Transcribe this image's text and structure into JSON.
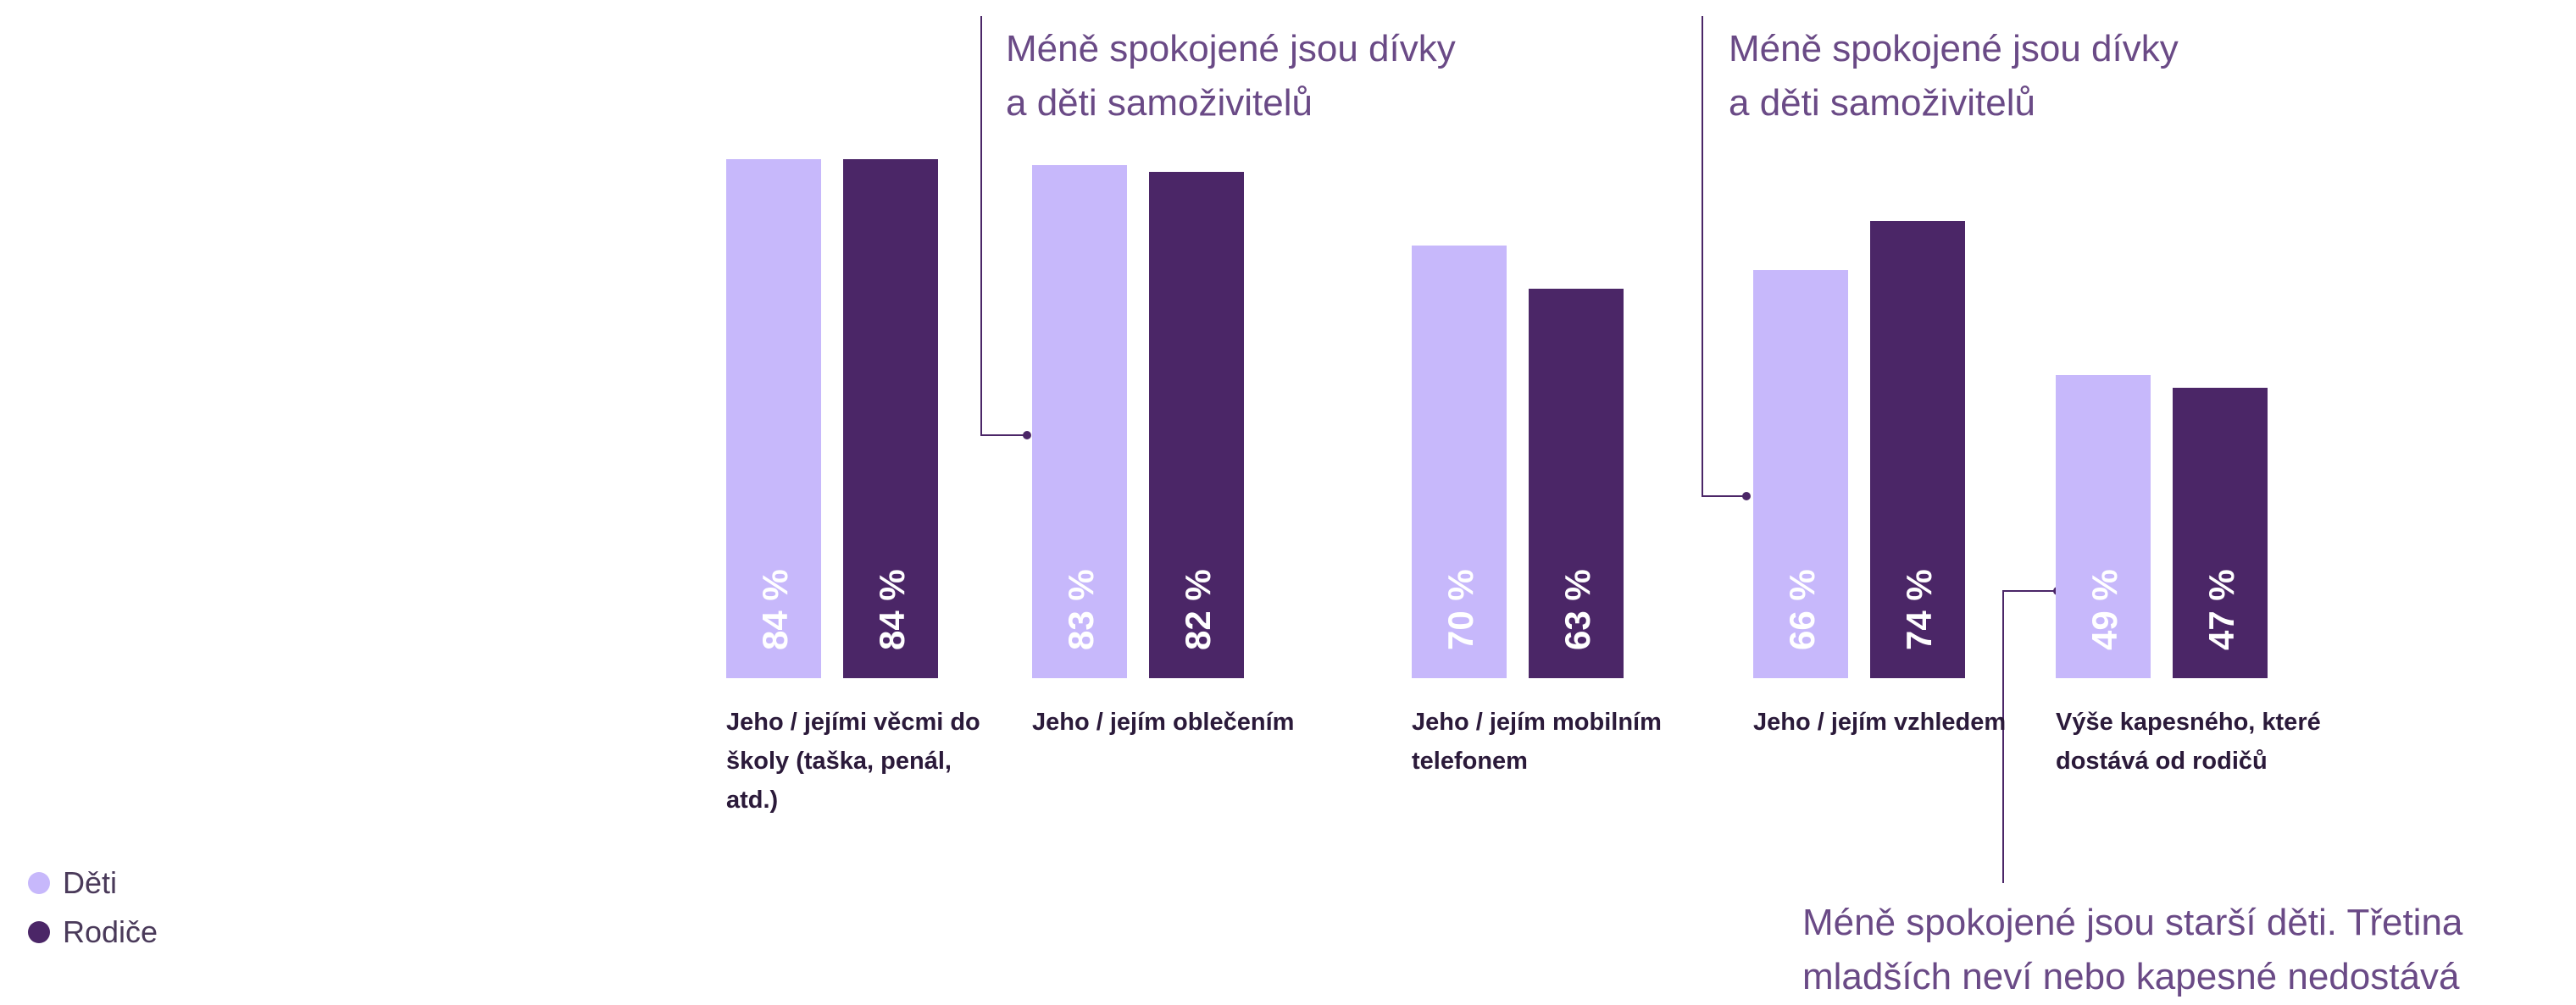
{
  "chart_data": {
    "type": "bar",
    "categories": [
      "Jeho / jejími věcmi do školy (taška, penál, atd.)",
      "Jeho / jejím oblečením",
      "Jeho / jejím mobilním telefonem",
      "Jeho / jejím vzhledem",
      "Výše kapesného, které dostává od rodičů"
    ],
    "series": [
      {
        "name": "Děti",
        "color": "#c7b8fb",
        "values": [
          84,
          83,
          70,
          66,
          49
        ],
        "value_labels": [
          "84 %",
          "83 %",
          "70 %",
          "66 %",
          "49 %"
        ]
      },
      {
        "name": "Rodiče",
        "color": "#4b2667",
        "values": [
          84,
          82,
          63,
          74,
          47
        ],
        "value_labels": [
          "84 %",
          "82 %",
          "63 %",
          "74 %",
          "47 %"
        ]
      }
    ],
    "annotations": [
      {
        "lines": [
          "Méně spokojené jsou dívky",
          "a děti samoživitelů"
        ]
      },
      {
        "lines": [
          "Méně spokojené jsou dívky",
          "a děti samoživitelů"
        ]
      },
      {
        "lines": [
          "Méně spokojené jsou starší děti. Třetina",
          "mladších neví nebo kapesné nedostává"
        ]
      }
    ]
  }
}
